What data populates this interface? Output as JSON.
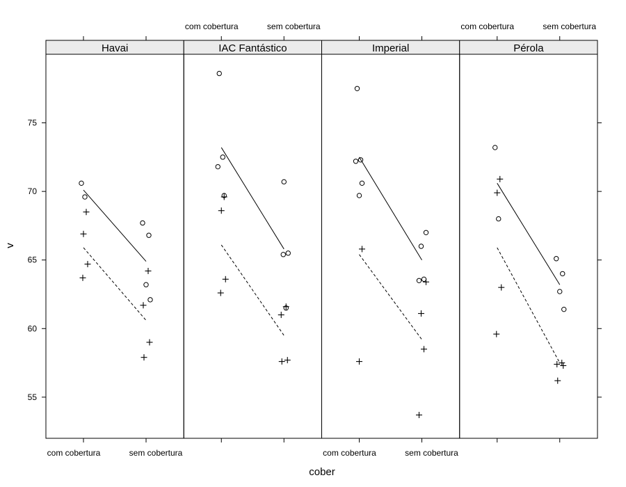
{
  "chart_data": {
    "type": "scatter",
    "layout": "lattice panels, 4 columns x 1 row",
    "xlabel": "cober",
    "ylabel": "v",
    "categories": [
      "com cobertura",
      "sem cobertura"
    ],
    "ylim": [
      52,
      80
    ],
    "yticks": [
      55,
      60,
      65,
      70,
      75
    ],
    "grid": false,
    "legend": "none",
    "panels": [
      {
        "name": "Havai",
        "series": [
          {
            "marker": "circle",
            "points": [
              [
                "com cobertura",
                70.6
              ],
              [
                "com cobertura",
                69.6
              ],
              [
                "sem cobertura",
                67.7
              ],
              [
                "sem cobertura",
                66.8
              ],
              [
                "sem cobertura",
                63.2
              ],
              [
                "sem cobertura",
                62.1
              ]
            ],
            "fit": [
              70.1,
              64.9
            ],
            "line": "solid"
          },
          {
            "marker": "plus",
            "points": [
              [
                "com cobertura",
                68.5
              ],
              [
                "com cobertura",
                66.9
              ],
              [
                "com cobertura",
                64.7
              ],
              [
                "com cobertura",
                63.7
              ],
              [
                "sem cobertura",
                64.2
              ],
              [
                "sem cobertura",
                61.7
              ],
              [
                "sem cobertura",
                59.0
              ],
              [
                "sem cobertura",
                57.9
              ]
            ],
            "fit": [
              65.9,
              60.6
            ],
            "line": "dashed"
          }
        ]
      },
      {
        "name": "IAC Fantástico",
        "series": [
          {
            "marker": "circle",
            "points": [
              [
                "com cobertura",
                78.6
              ],
              [
                "com cobertura",
                72.5
              ],
              [
                "com cobertura",
                71.8
              ],
              [
                "com cobertura",
                69.7
              ],
              [
                "sem cobertura",
                70.7
              ],
              [
                "sem cobertura",
                65.5
              ],
              [
                "sem cobertura",
                65.4
              ],
              [
                "sem cobertura",
                61.5
              ]
            ],
            "fit": [
              73.2,
              65.8
            ],
            "line": "solid"
          },
          {
            "marker": "plus",
            "points": [
              [
                "com cobertura",
                69.6
              ],
              [
                "com cobertura",
                68.6
              ],
              [
                "com cobertura",
                63.6
              ],
              [
                "com cobertura",
                62.6
              ],
              [
                "sem cobertura",
                61.6
              ],
              [
                "sem cobertura",
                61.0
              ],
              [
                "sem cobertura",
                57.7
              ],
              [
                "sem cobertura",
                57.6
              ]
            ],
            "fit": [
              66.1,
              59.5
            ],
            "line": "dashed"
          }
        ]
      },
      {
        "name": "Imperial",
        "series": [
          {
            "marker": "circle",
            "points": [
              [
                "com cobertura",
                77.5
              ],
              [
                "com cobertura",
                72.3
              ],
              [
                "com cobertura",
                72.2
              ],
              [
                "com cobertura",
                70.6
              ],
              [
                "com cobertura",
                69.7
              ],
              [
                "sem cobertura",
                67.0
              ],
              [
                "sem cobertura",
                66.0
              ],
              [
                "sem cobertura",
                63.6
              ],
              [
                "sem cobertura",
                63.5
              ]
            ],
            "fit": [
              72.5,
              65.0
            ],
            "line": "solid"
          },
          {
            "marker": "plus",
            "points": [
              [
                "com cobertura",
                65.8
              ],
              [
                "com cobertura",
                57.6
              ],
              [
                "sem cobertura",
                63.4
              ],
              [
                "sem cobertura",
                61.1
              ],
              [
                "sem cobertura",
                58.5
              ],
              [
                "sem cobertura",
                53.7
              ]
            ],
            "fit": [
              65.4,
              59.2
            ],
            "line": "dashed"
          }
        ]
      },
      {
        "name": "Pérola",
        "series": [
          {
            "marker": "circle",
            "points": [
              [
                "com cobertura",
                73.2
              ],
              [
                "com cobertura",
                68.0
              ],
              [
                "sem cobertura",
                65.1
              ],
              [
                "sem cobertura",
                64.0
              ],
              [
                "sem cobertura",
                62.7
              ],
              [
                "sem cobertura",
                61.4
              ]
            ],
            "fit": [
              70.6,
              63.2
            ],
            "line": "solid"
          },
          {
            "marker": "plus",
            "points": [
              [
                "com cobertura",
                70.9
              ],
              [
                "com cobertura",
                69.9
              ],
              [
                "com cobertura",
                63.0
              ],
              [
                "com cobertura",
                59.6
              ],
              [
                "sem cobertura",
                57.5
              ],
              [
                "sem cobertura",
                57.4
              ],
              [
                "sem cobertura",
                57.3
              ],
              [
                "sem cobertura",
                56.2
              ]
            ],
            "fit": [
              65.9,
              57.5
            ],
            "line": "dashed"
          }
        ]
      }
    ]
  }
}
